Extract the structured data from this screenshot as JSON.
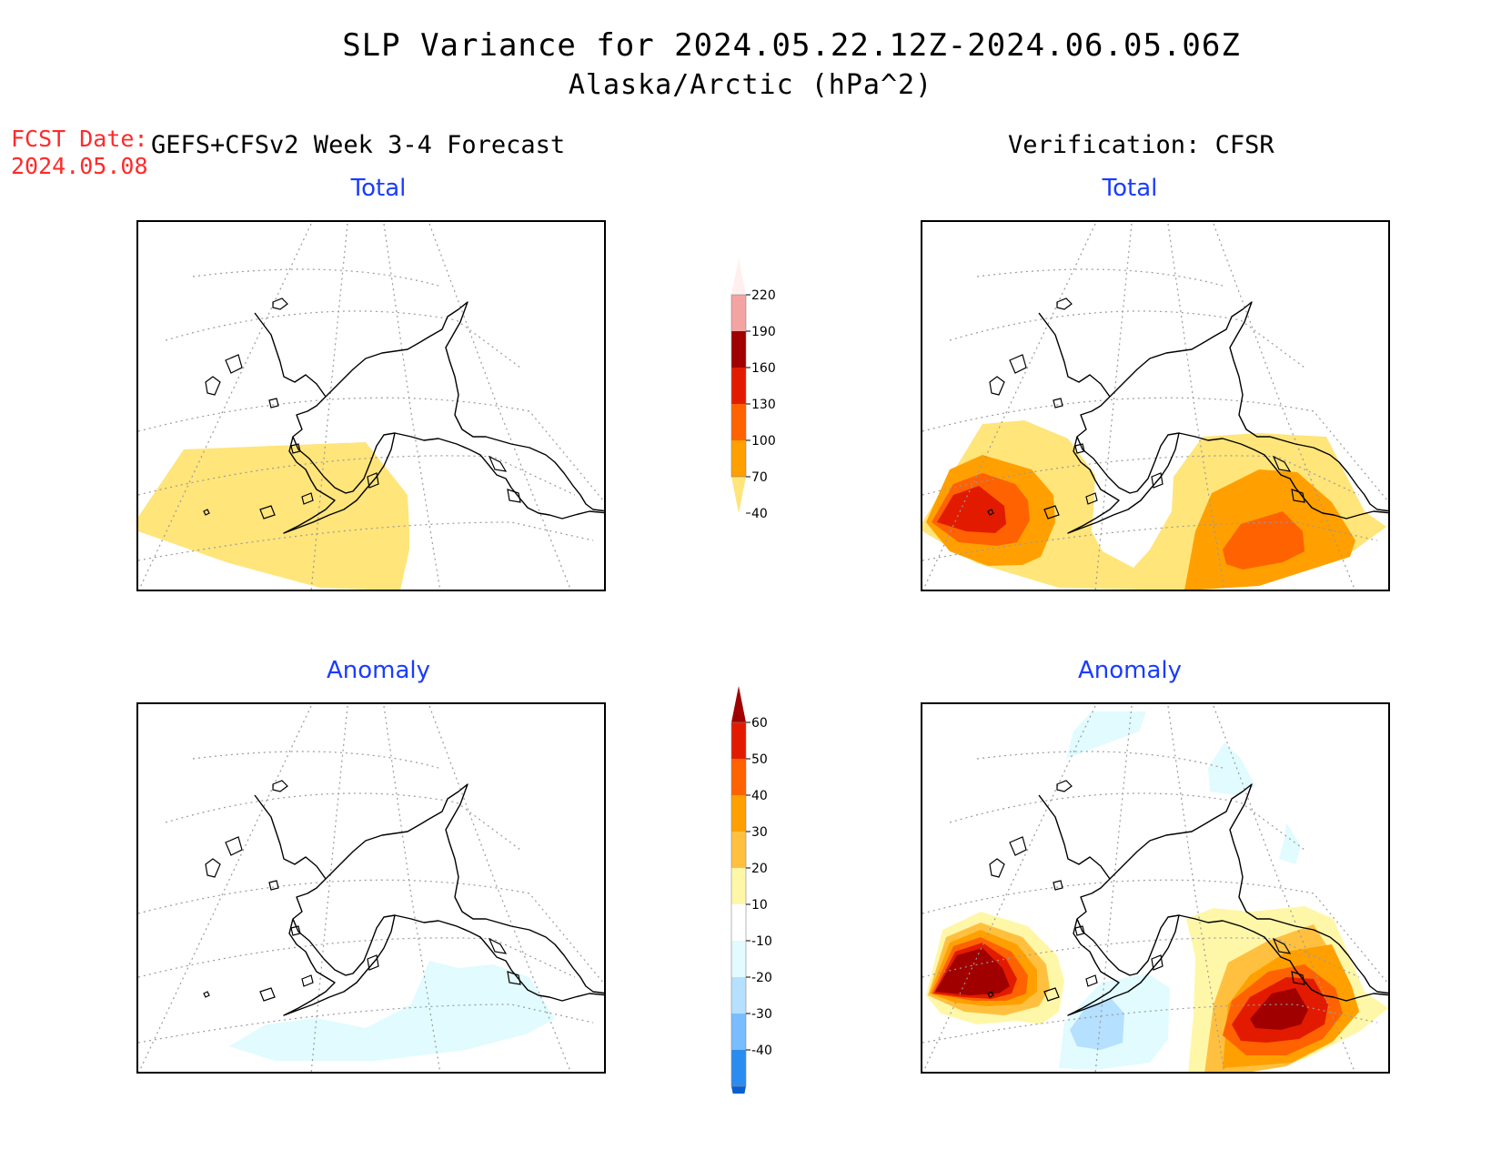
{
  "header": {
    "title": "SLP Variance for 2024.05.22.12Z-2024.06.05.06Z",
    "subtitle": "Alaska/Arctic (hPa^2)",
    "fcst_label": "FCST Date:",
    "fcst_date": "2024.05.08",
    "forecast_title": "GEFS+CFSv2 Week 3-4 Forecast",
    "verification_title": "Verification: CFSR"
  },
  "panels": {
    "top_left": {
      "title": "Total"
    },
    "top_right": {
      "title": "Total"
    },
    "bottom_left": {
      "title": "Anomaly"
    },
    "bottom_right": {
      "title": "Anomaly"
    }
  },
  "colorbars": {
    "total": {
      "labels": [
        "220",
        "190",
        "160",
        "130",
        "100",
        "70",
        "40"
      ],
      "colors": [
        "#fff0ee",
        "#f4a3a3",
        "#a00000",
        "#e21b00",
        "#ff6200",
        "#ffa000",
        "#ffe57a"
      ]
    },
    "anomaly": {
      "labels": [
        "60",
        "50",
        "40",
        "30",
        "20",
        "10",
        "-10",
        "-20",
        "-30",
        "-40"
      ],
      "colors": [
        "#a00000",
        "#e21b00",
        "#ff6200",
        "#ffa000",
        "#ffc040",
        "#fff7a8",
        "#ffffff",
        "#e1fbff",
        "#b5e0ff",
        "#78bdff",
        "#2a8cf0",
        "#0a5fd0"
      ]
    }
  }
}
